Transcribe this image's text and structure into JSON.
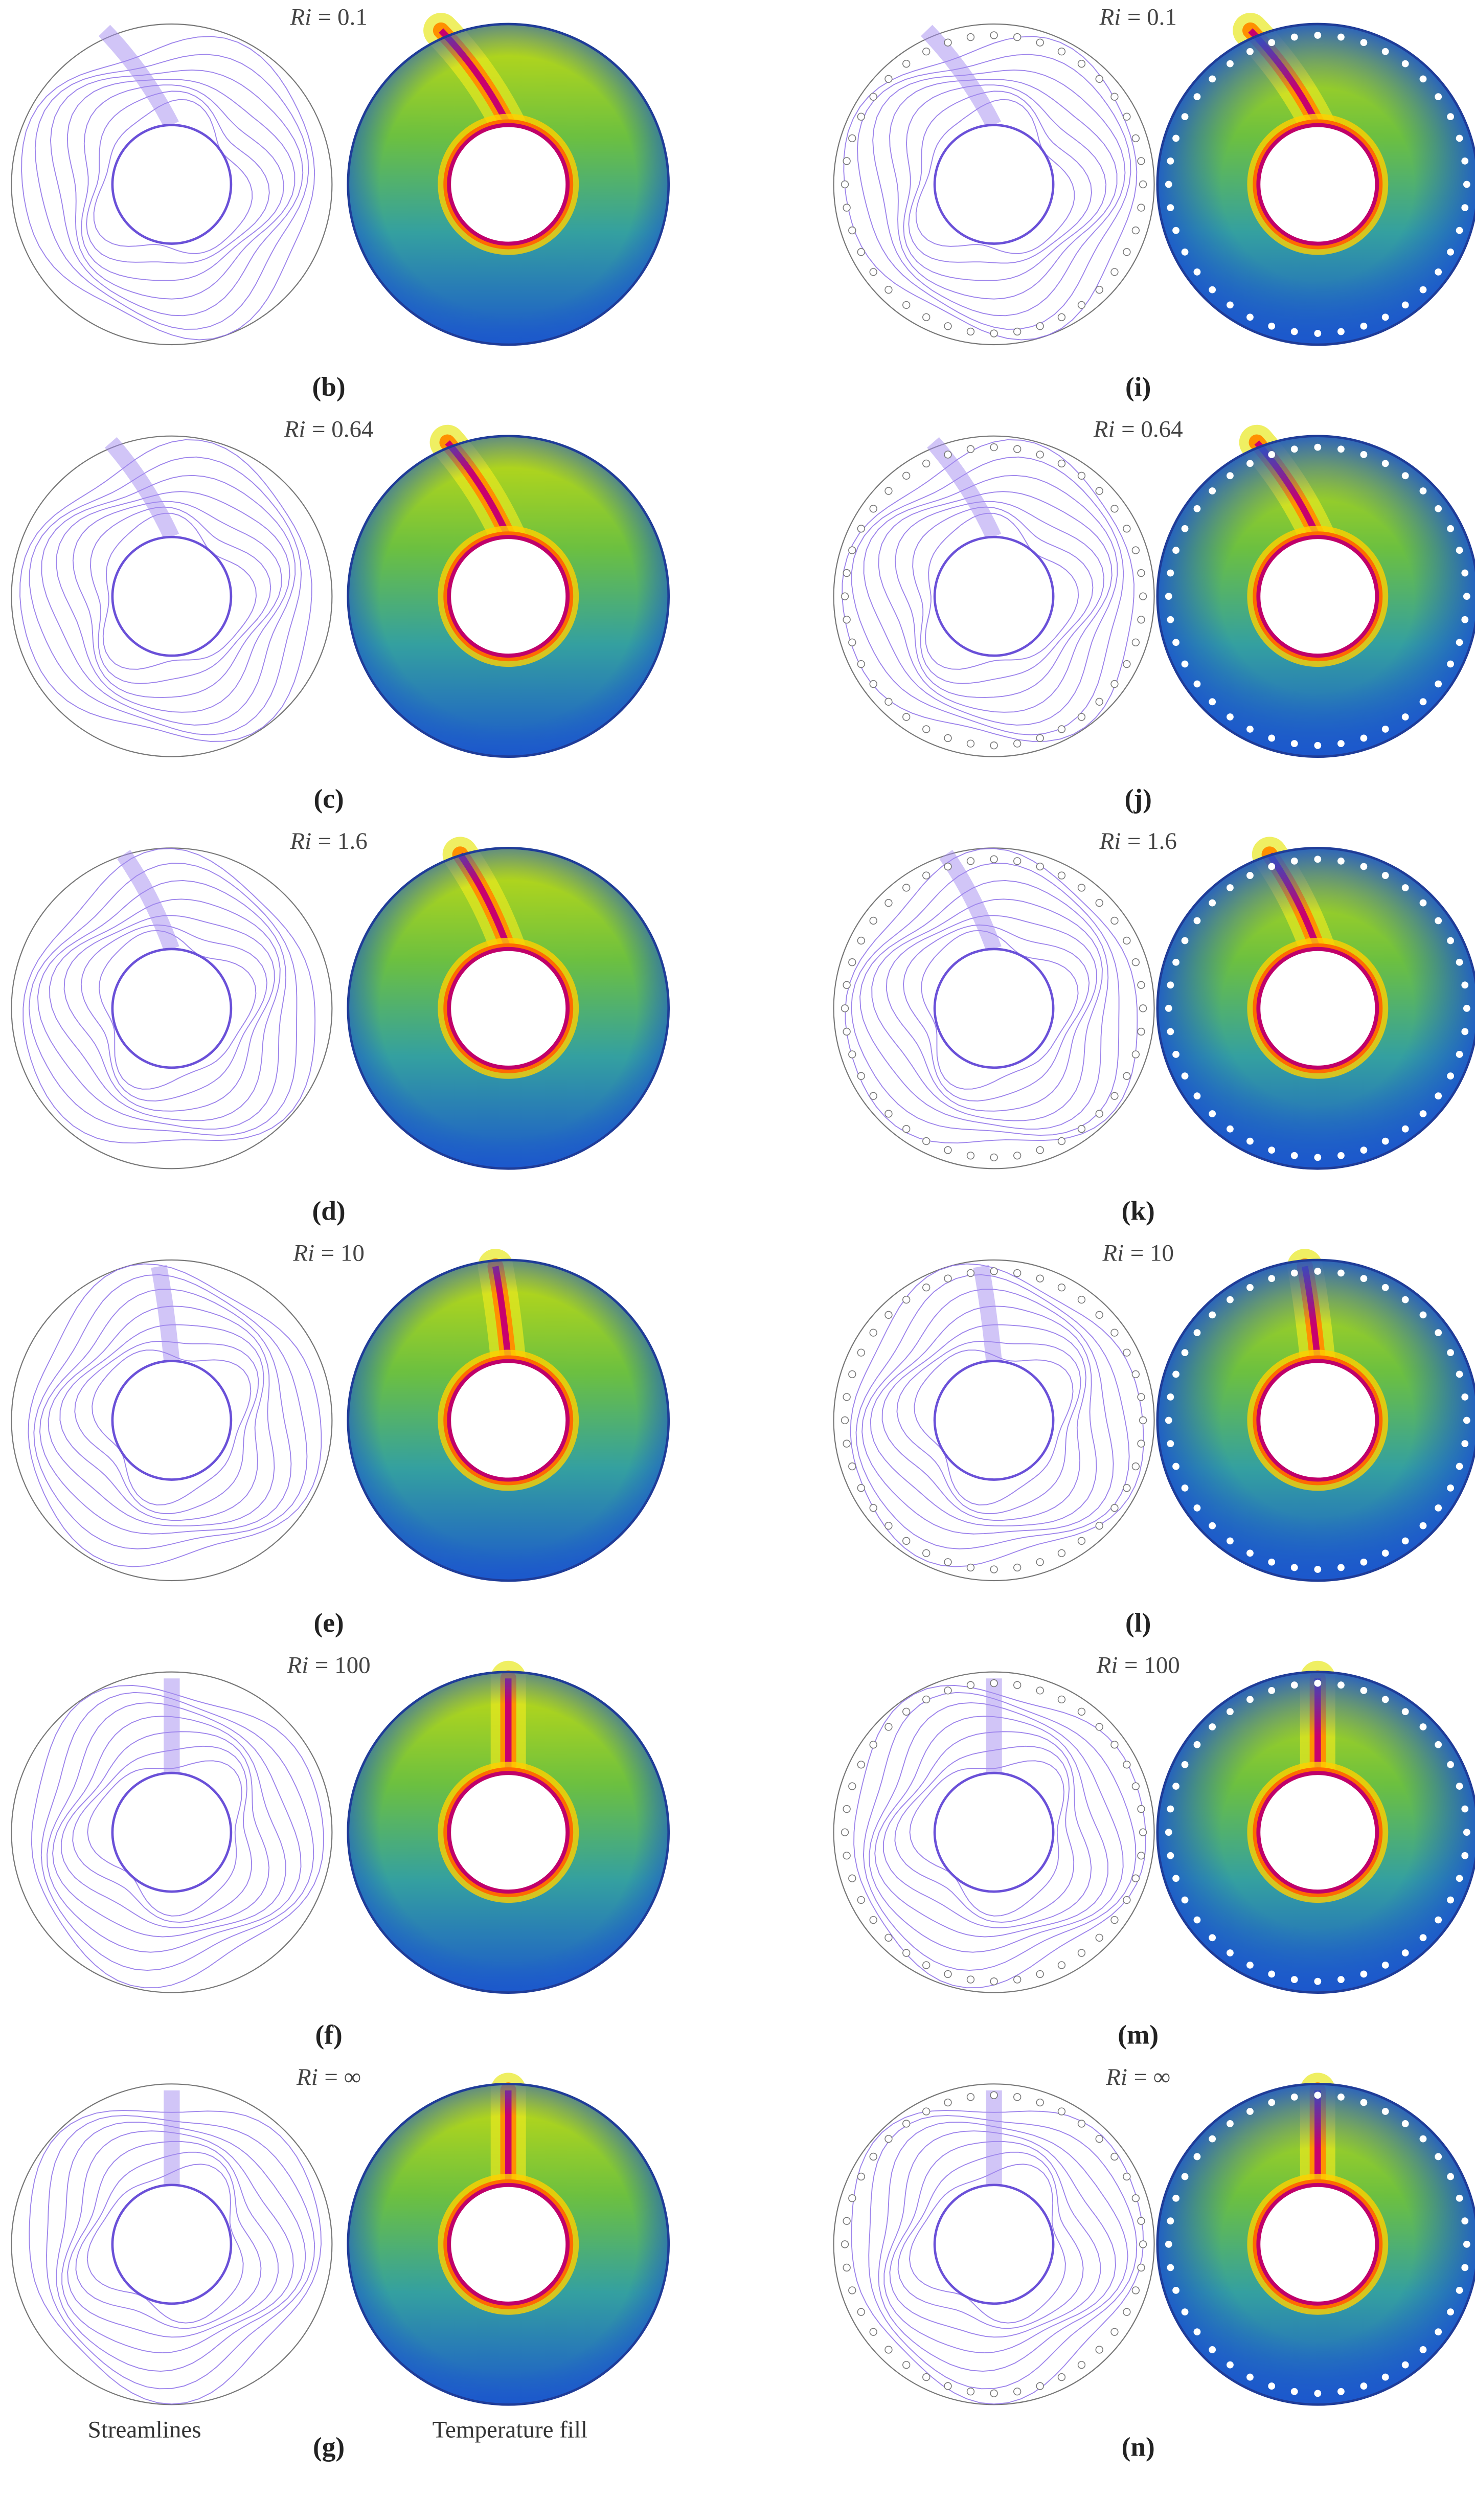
{
  "panels": [
    {
      "title": {
        "symbol": "Ri",
        "rest": "= 0.1"
      },
      "label": "(b)"
    },
    {
      "title": {
        "symbol": "Ri",
        "rest": "= 0.64"
      },
      "label": "(c)"
    },
    {
      "title": {
        "symbol": "Ri",
        "rest": "= 1.6"
      },
      "label": "(d)"
    },
    {
      "title": {
        "symbol": "Ri",
        "rest": "= 10"
      },
      "label": "(e)"
    },
    {
      "title": {
        "symbol": "Ri",
        "rest": "= 100"
      },
      "label": "(f)"
    },
    {
      "title": {
        "symbol": "Ri",
        "rest": "= ∞"
      },
      "label": "(g)"
    },
    {
      "title": {
        "symbol": "Ri",
        "rest": "= 0.1"
      },
      "label": "(i)"
    },
    {
      "title": {
        "symbol": "Ri",
        "rest": "= 0.64"
      },
      "label": "(j)"
    },
    {
      "title": {
        "symbol": "Ri",
        "rest": "= 1.6"
      },
      "label": "(k)"
    },
    {
      "title": {
        "symbol": "Ri",
        "rest": "= 10"
      },
      "label": "(l)"
    },
    {
      "title": {
        "symbol": "Ri",
        "rest": "= 100"
      },
      "label": "(m)"
    },
    {
      "title": {
        "symbol": "Ri",
        "rest": "= ∞"
      },
      "label": "(n)"
    }
  ],
  "captions": {
    "streamlines": "Streamlines",
    "temperature": "Temperature fill"
  }
}
